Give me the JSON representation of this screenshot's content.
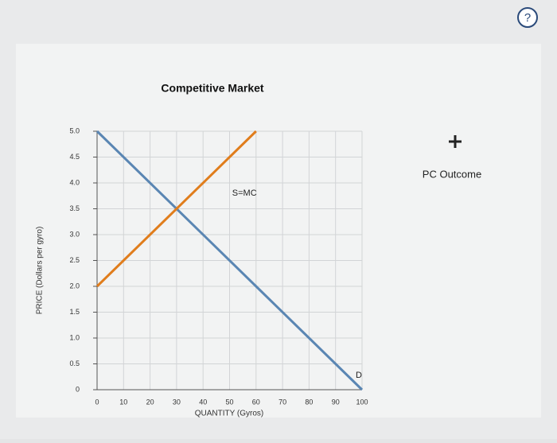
{
  "chart_data": {
    "type": "line",
    "title": "Competitive Market",
    "x_label": "QUANTITY (Gyros)",
    "y_label": "PRICE (Dollars per gyro)",
    "x": [
      0,
      60,
      100
    ],
    "series": [
      {
        "name": "D",
        "color": "#5a86b3",
        "values": [
          5,
          2,
          0
        ]
      },
      {
        "name": "S=MC",
        "color": "#e07d1c",
        "values": [
          2,
          5,
          null
        ]
      }
    ],
    "xlim": [
      0,
      100
    ],
    "xticks": [
      0,
      10,
      20,
      30,
      40,
      50,
      60,
      70,
      80,
      90,
      100
    ],
    "ylim": [
      0,
      5
    ],
    "yticks": [
      0,
      0.5,
      {
        "value": 1,
        "label": "1.0"
      },
      1.5,
      {
        "value": 2,
        "label": "2.0"
      },
      2.5,
      {
        "value": 3,
        "label": "3.0"
      },
      3.5,
      {
        "value": 4,
        "label": "4.0"
      },
      4.5,
      {
        "value": 5,
        "label": "5.0"
      }
    ],
    "grid": true
  },
  "tool": {
    "label": "PC Outcome"
  },
  "help": {
    "label": "?"
  }
}
